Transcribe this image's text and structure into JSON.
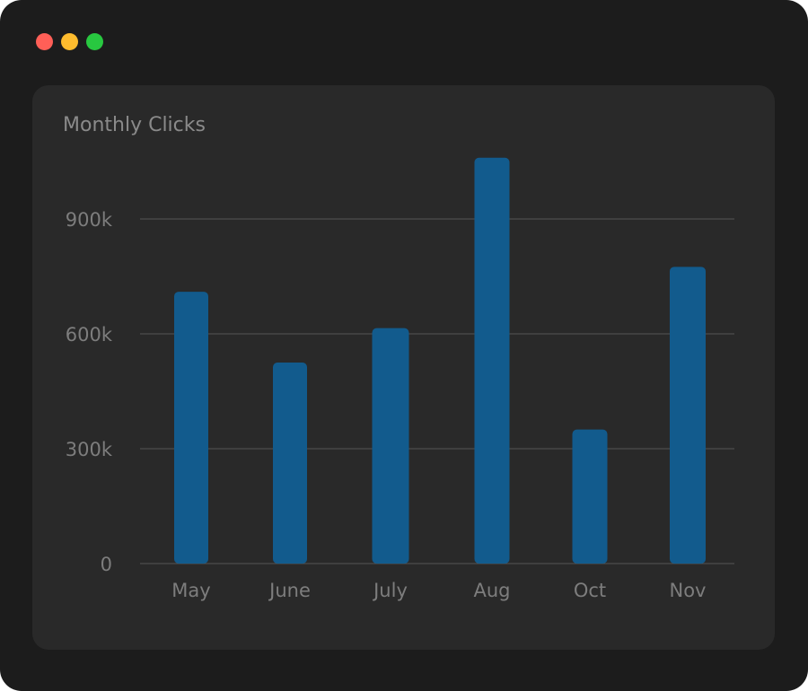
{
  "window": {
    "traffic_lights": [
      {
        "name": "close",
        "color": "#ff5f57"
      },
      {
        "name": "minimize",
        "color": "#febc2e"
      },
      {
        "name": "zoom",
        "color": "#28c840"
      }
    ],
    "background": "#1c1c1c",
    "card_background": "#292929"
  },
  "chart_data": {
    "type": "bar",
    "title": "Monthly Clicks",
    "categories": [
      "May",
      "June",
      "July",
      "Aug",
      "Oct",
      "Nov"
    ],
    "values": [
      710000,
      525000,
      615000,
      1060000,
      350000,
      775000
    ],
    "yticks": [
      0,
      300000,
      600000,
      900000
    ],
    "ytick_labels": [
      "0",
      "300k",
      "600k",
      "900k"
    ],
    "ylim": [
      0,
      1060000
    ],
    "grid": true,
    "bar_color": "#125b8d",
    "grid_color": "#555555",
    "text_color": "#7d7d7d"
  }
}
